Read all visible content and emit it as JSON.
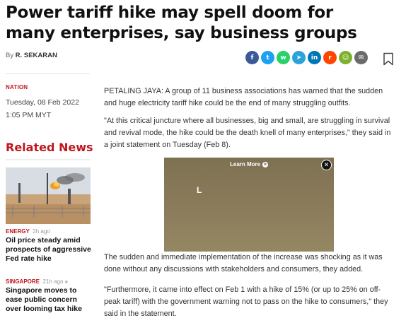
{
  "article": {
    "headline": "Power tariff hike may spell doom for many enterprises, say business groups",
    "byline_prefix": "By",
    "author": "R. SEKARAN",
    "category": "NATION",
    "date": "Tuesday, 08 Feb 2022",
    "time": "1:05 PM MYT",
    "paragraphs": [
      "PETALING JAYA: A group of 11 business associations has warned that the sudden and huge electricity tariff hike could be the end of many struggling outfits.",
      "\"At this critical juncture where all businesses, big and small, are struggling in survival and revival mode, the hike could be the death knell of many enterprises,\" they said in a joint statement on Tuesday (Feb 8).",
      "The sudden and immediate implementation of the increase was shocking as it was done without any discussions with stakeholders and consumers, they added.",
      "\"Furthermore, it came into effect on Feb 1 with a hike of 15% (or up to 25% on off-peak tariff) with the government warning not to pass on the hike to consumers,\" they said in the statement."
    ]
  },
  "share": {
    "buttons": [
      {
        "icon": "facebook-icon",
        "glyph": "f",
        "color": "#3b5998"
      },
      {
        "icon": "twitter-icon",
        "glyph": "t",
        "color": "#1da1f2"
      },
      {
        "icon": "whatsapp-icon",
        "glyph": "w",
        "color": "#25d366"
      },
      {
        "icon": "telegram-icon",
        "glyph": "➤",
        "color": "#2aa3d9"
      },
      {
        "icon": "linkedin-icon",
        "glyph": "in",
        "color": "#0077b5"
      },
      {
        "icon": "reddit-icon",
        "glyph": "r",
        "color": "#ff4500"
      },
      {
        "icon": "wechat-icon",
        "glyph": "☺",
        "color": "#7bb32e"
      },
      {
        "icon": "email-icon",
        "glyph": "✉",
        "color": "#6b6b6b"
      }
    ],
    "bookmark_icon": "bookmark-icon"
  },
  "ad": {
    "learn_more": "Learn More",
    "letter": "L",
    "close_glyph": "✕"
  },
  "related": {
    "heading": "Related News",
    "items": [
      {
        "category": "ENERGY",
        "age": "2h ago",
        "title": "Oil price steady amid prospects of aggressive Fed rate hike"
      },
      {
        "category": "SINGAPORE",
        "age": "21h ago",
        "title": "Singapore moves to ease public concern over looming tax hike"
      }
    ]
  },
  "colors": {
    "accent": "#c0151d"
  }
}
